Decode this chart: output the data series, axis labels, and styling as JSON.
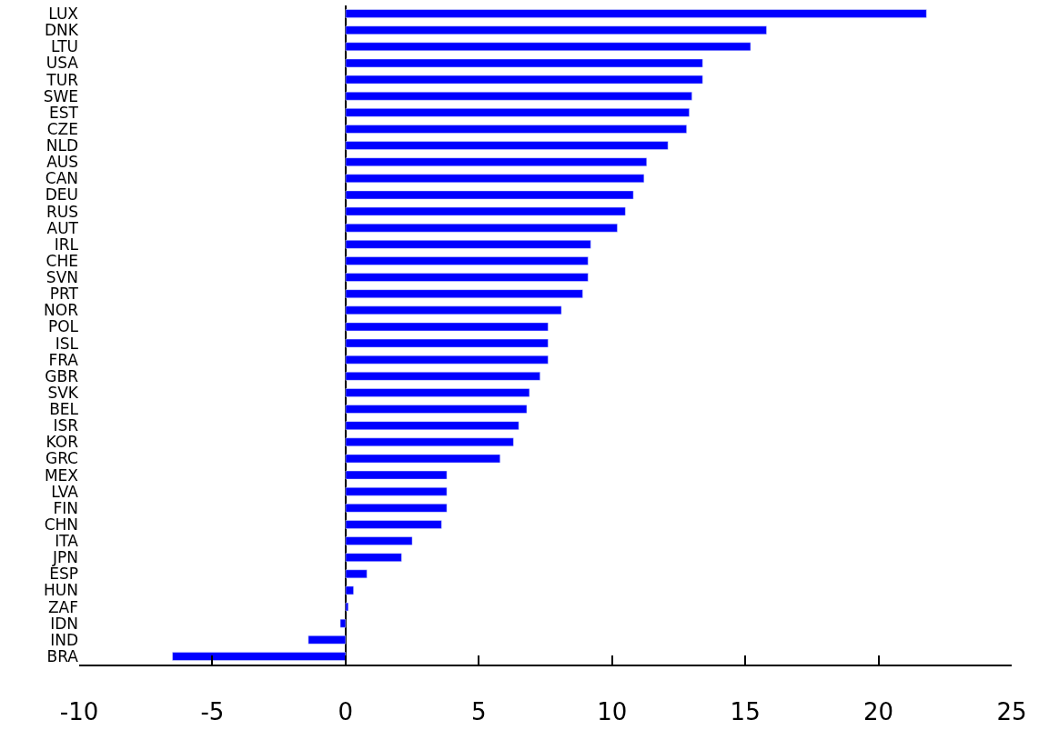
{
  "chart_data": {
    "type": "bar",
    "orientation": "horizontal",
    "color": "#0000ff",
    "categories": [
      "LUX",
      "DNK",
      "LTU",
      "USA",
      "TUR",
      "SWE",
      "EST",
      "CZE",
      "NLD",
      "AUS",
      "CAN",
      "DEU",
      "RUS",
      "AUT",
      "IRL",
      "CHE",
      "SVN",
      "PRT",
      "NOR",
      "POL",
      "ISL",
      "FRA",
      "GBR",
      "SVK",
      "BEL",
      "ISR",
      "KOR",
      "GRC",
      "MEX",
      "LVA",
      "FIN",
      "CHN",
      "ITA",
      "JPN",
      "ESP",
      "HUN",
      "ZAF",
      "IDN",
      "IND",
      "BRA"
    ],
    "values": [
      21.8,
      15.8,
      15.2,
      13.4,
      13.4,
      13.0,
      12.9,
      12.8,
      12.1,
      11.3,
      11.2,
      10.8,
      10.5,
      10.2,
      9.2,
      9.1,
      9.1,
      8.9,
      8.1,
      7.6,
      7.6,
      7.6,
      7.3,
      6.9,
      6.8,
      6.5,
      6.3,
      5.8,
      3.8,
      3.8,
      3.8,
      3.6,
      2.5,
      2.1,
      0.8,
      0.3,
      0.1,
      -0.2,
      -1.4,
      -6.5
    ],
    "xlim": [
      -10,
      25
    ],
    "xticks": [
      -10,
      -5,
      0,
      5,
      10,
      15,
      20,
      25
    ]
  }
}
